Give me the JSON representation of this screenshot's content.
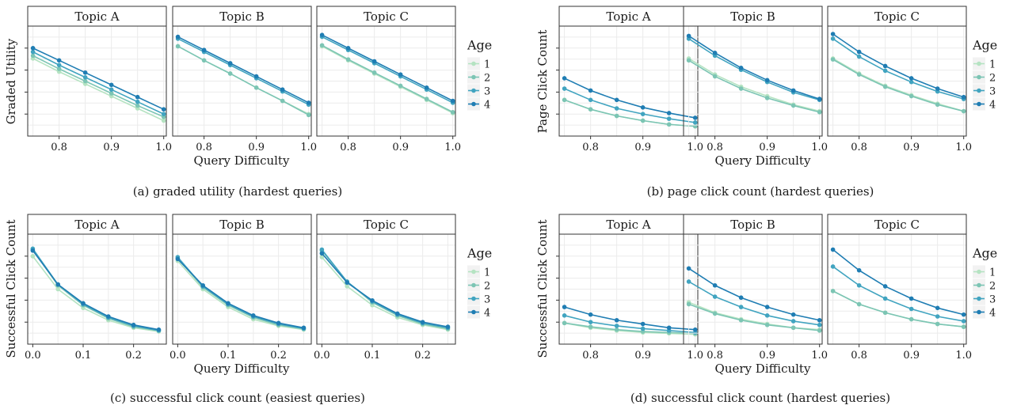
{
  "chart_data": [
    {
      "type": "line",
      "caption": "(a) graded utility (hardest queries)",
      "xlabel": "Query Difficulty",
      "ylabel": "Graded Utility",
      "xticks": [
        "0.8",
        "0.9",
        "1.0"
      ],
      "xtick_values": [
        0.8,
        0.9,
        1.0
      ],
      "xlim": [
        0.74,
        1.005
      ],
      "ylim": [
        0,
        100
      ],
      "legend_title": "Age",
      "panels": [
        {
          "strip": "Topic A",
          "x": [
            0.75,
            0.8,
            0.85,
            0.9,
            0.95,
            1.0
          ],
          "series": [
            {
              "name": "1",
              "values": [
                74,
                60,
                47,
                34,
                21,
                8
              ]
            },
            {
              "name": "2",
              "values": [
                77,
                63,
                50,
                37,
                24,
                12
              ]
            },
            {
              "name": "3",
              "values": [
                81,
                67,
                54,
                41,
                28,
                15
              ]
            },
            {
              "name": "4",
              "values": [
                85,
                72,
                59,
                46,
                33,
                20
              ]
            }
          ]
        },
        {
          "strip": "Topic B",
          "x": [
            0.75,
            0.8,
            0.85,
            0.9,
            0.95,
            1.0
          ],
          "series": [
            {
              "name": "1",
              "values": [
                87,
                72,
                58,
                43,
                29,
                15
              ]
            },
            {
              "name": "2",
              "values": [
                87,
                72,
                58,
                43,
                29,
                14
              ]
            },
            {
              "name": "3",
              "values": [
                95,
                81,
                67,
                53,
                39,
                25
              ]
            },
            {
              "name": "4",
              "values": [
                97,
                83,
                69,
                55,
                41,
                27
              ]
            }
          ]
        },
        {
          "strip": "Topic C",
          "x": [
            0.75,
            0.8,
            0.85,
            0.9,
            0.95,
            1.0
          ],
          "series": [
            {
              "name": "1",
              "values": [
                87,
                72,
                58,
                44,
                30,
                16
              ]
            },
            {
              "name": "2",
              "values": [
                88,
                73,
                59,
                45,
                31,
                17
              ]
            },
            {
              "name": "3",
              "values": [
                97,
                83,
                69,
                55,
                41,
                27
              ]
            },
            {
              "name": "4",
              "values": [
                99,
                85,
                71,
                57,
                43,
                29
              ]
            }
          ]
        }
      ]
    },
    {
      "type": "line",
      "caption": "(b) page click count (hardest queries)",
      "xlabel": "Query Difficulty",
      "ylabel": "Page Click Count",
      "xticks": [
        "0.8",
        "0.9",
        "1.0"
      ],
      "xtick_values": [
        0.8,
        0.9,
        1.0
      ],
      "xlim": [
        0.74,
        1.005
      ],
      "ylim": [
        0,
        100
      ],
      "legend_title": "Age",
      "panels": [
        {
          "strip": "Topic A",
          "x": [
            0.75,
            0.8,
            0.85,
            0.9,
            0.95,
            1.0
          ],
          "series": [
            {
              "name": "1",
              "values": [
                30,
                20,
                13,
                8,
                4,
                2
              ]
            },
            {
              "name": "2",
              "values": [
                30,
                20,
                13,
                8,
                4,
                2
              ]
            },
            {
              "name": "3",
              "values": [
                42,
                30,
                21,
                15,
                10,
                6
              ]
            },
            {
              "name": "4",
              "values": [
                53,
                40,
                30,
                22,
                16,
                11
              ]
            }
          ]
        },
        {
          "strip": "Topic B",
          "x": [
            0.75,
            0.8,
            0.85,
            0.9,
            0.95,
            1.0
          ],
          "series": [
            {
              "name": "1",
              "values": [
                74,
                57,
                44,
                34,
                25,
                18
              ]
            },
            {
              "name": "2",
              "values": [
                72,
                55,
                42,
                32,
                24,
                17
              ]
            },
            {
              "name": "3",
              "values": [
                95,
                77,
                62,
                49,
                38,
                30
              ]
            },
            {
              "name": "4",
              "values": [
                98,
                80,
                64,
                51,
                40,
                31
              ]
            }
          ]
        },
        {
          "strip": "Topic C",
          "x": [
            0.75,
            0.8,
            0.85,
            0.9,
            0.95,
            1.0
          ],
          "series": [
            {
              "name": "1",
              "values": [
                74,
                58,
                45,
                35,
                26,
                18
              ]
            },
            {
              "name": "2",
              "values": [
                73,
                57,
                44,
                34,
                25,
                18
              ]
            },
            {
              "name": "3",
              "values": [
                95,
                76,
                61,
                49,
                39,
                31
              ]
            },
            {
              "name": "4",
              "values": [
                100,
                81,
                66,
                53,
                42,
                33
              ]
            }
          ]
        }
      ]
    },
    {
      "type": "line",
      "caption": "(c) successful click count (easiest queries)",
      "xlabel": "Query Difficulty",
      "ylabel": "Successful Click Count",
      "xticks": [
        "0.0",
        "0.1",
        "0.2"
      ],
      "xtick_values": [
        0.0,
        0.1,
        0.2
      ],
      "xlim": [
        -0.01,
        0.265
      ],
      "ylim": [
        0,
        100
      ],
      "legend_title": "Age",
      "panels": [
        {
          "strip": "Topic A",
          "x": [
            0.0,
            0.05,
            0.1,
            0.15,
            0.2,
            0.25
          ],
          "series": [
            {
              "name": "1",
              "values": [
                85,
                50,
                30,
                17,
                9,
                5
              ]
            },
            {
              "name": "2",
              "values": [
                92,
                54,
                33,
                19,
                10,
                6
              ]
            },
            {
              "name": "3",
              "values": [
                93,
                55,
                34,
                20,
                11,
                6
              ]
            },
            {
              "name": "4",
              "values": [
                91,
                55,
                35,
                21,
                12,
                7
              ]
            }
          ]
        },
        {
          "strip": "Topic B",
          "x": [
            0.0,
            0.05,
            0.1,
            0.15,
            0.2,
            0.25
          ],
          "series": [
            {
              "name": "1",
              "values": [
                80,
                50,
                31,
                18,
                11,
                7
              ]
            },
            {
              "name": "2",
              "values": [
                83,
                52,
                33,
                20,
                12,
                8
              ]
            },
            {
              "name": "3",
              "values": [
                84,
                53,
                34,
                21,
                13,
                8
              ]
            },
            {
              "name": "4",
              "values": [
                82,
                54,
                35,
                22,
                14,
                9
              ]
            }
          ]
        },
        {
          "strip": "Topic C",
          "x": [
            0.0,
            0.05,
            0.1,
            0.15,
            0.2,
            0.25
          ],
          "series": [
            {
              "name": "1",
              "values": [
                84,
                53,
                33,
                20,
                12,
                7
              ]
            },
            {
              "name": "2",
              "values": [
                91,
                58,
                36,
                22,
                13,
                8
              ]
            },
            {
              "name": "3",
              "values": [
                92,
                58,
                37,
                23,
                14,
                9
              ]
            },
            {
              "name": "4",
              "values": [
                88,
                57,
                38,
                24,
                15,
                10
              ]
            }
          ]
        }
      ]
    },
    {
      "type": "line",
      "caption": "(d) successful click count (hardest queries)",
      "xlabel": "Query Difficulty",
      "ylabel": "Successful Click Count",
      "xticks": [
        "0.8",
        "0.9",
        "1.0"
      ],
      "xtick_values": [
        0.8,
        0.9,
        1.0
      ],
      "xlim": [
        0.74,
        1.005
      ],
      "ylim": [
        0,
        100
      ],
      "legend_title": "Age",
      "panels": [
        {
          "strip": "Topic A",
          "x": [
            0.75,
            0.8,
            0.85,
            0.9,
            0.95,
            1.0
          ],
          "series": [
            {
              "name": "1",
              "values": [
                14,
                9,
                6,
                4,
                3,
                2
              ]
            },
            {
              "name": "2",
              "values": [
                14,
                10,
                7,
                5,
                4,
                3
              ]
            },
            {
              "name": "3",
              "values": [
                22,
                15,
                11,
                8,
                6,
                4
              ]
            },
            {
              "name": "4",
              "values": [
                31,
                23,
                17,
                13,
                9,
                7
              ]
            }
          ]
        },
        {
          "strip": "Topic B",
          "x": [
            0.75,
            0.8,
            0.85,
            0.9,
            0.95,
            1.0
          ],
          "series": [
            {
              "name": "1",
              "values": [
                36,
                25,
                18,
                13,
                9,
                7
              ]
            },
            {
              "name": "2",
              "values": [
                34,
                24,
                17,
                12,
                9,
                6
              ]
            },
            {
              "name": "3",
              "values": [
                58,
                42,
                31,
                22,
                16,
                12
              ]
            },
            {
              "name": "4",
              "values": [
                72,
                54,
                41,
                31,
                23,
                17
              ]
            }
          ]
        },
        {
          "strip": "Topic C",
          "x": [
            0.75,
            0.8,
            0.85,
            0.9,
            0.95,
            1.0
          ],
          "series": [
            {
              "name": "1",
              "values": [
                48,
                34,
                25,
                18,
                13,
                10
              ]
            },
            {
              "name": "2",
              "values": [
                48,
                34,
                25,
                18,
                13,
                10
              ]
            },
            {
              "name": "3",
              "values": [
                74,
                54,
                40,
                29,
                21,
                16
              ]
            },
            {
              "name": "4",
              "values": [
                92,
                70,
                53,
                40,
                30,
                23
              ]
            }
          ]
        }
      ]
    }
  ],
  "colors": {
    "1": "#b5e3c2",
    "2": "#7cc5b4",
    "3": "#41a4c0",
    "4": "#1f7db3",
    "grid": "#ebebeb",
    "strip_bg": "#ffffff",
    "border": "#333333"
  }
}
